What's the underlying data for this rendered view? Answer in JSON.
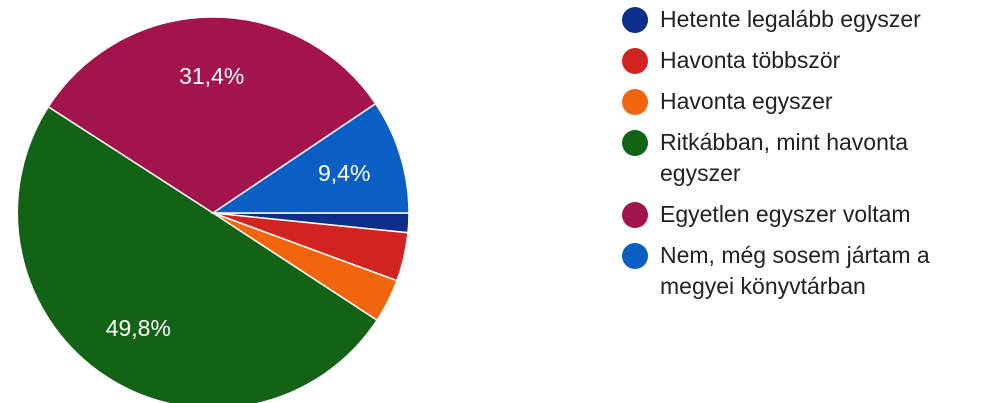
{
  "chart_data": {
    "type": "pie",
    "title": "",
    "legend_position": "right",
    "slices": [
      {
        "name": "Hetente legalább egyszer",
        "value": 1.6,
        "color": "#0e2e8c",
        "label": ""
      },
      {
        "name": "Havonta többször",
        "value": 4.0,
        "color": "#d12420",
        "label": ""
      },
      {
        "name": "Havonta egyszer",
        "value": 3.6,
        "color": "#f2650f",
        "label": ""
      },
      {
        "name": "Ritkábban, mint havonta egyszer",
        "value": 49.8,
        "color": "#136317",
        "label": "49,8%"
      },
      {
        "name": "Egyetlen egyszer voltam",
        "value": 31.4,
        "color": "#a3134c",
        "label": "31,4%"
      },
      {
        "name": "Nem, még sosem jártam a megyei könyvtárban",
        "value": 9.4,
        "color": "#0b5fc4",
        "label": "9,4%"
      }
    ]
  }
}
